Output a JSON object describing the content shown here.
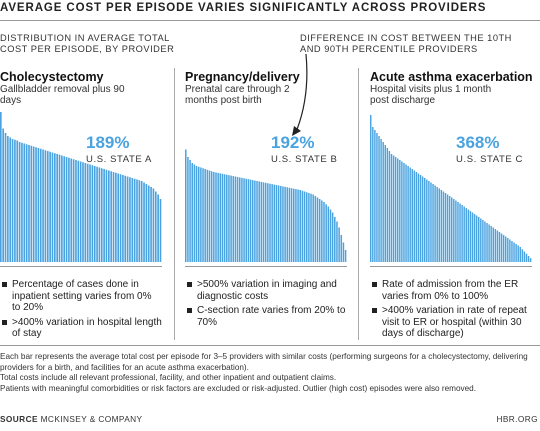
{
  "title": "AVERAGE COST PER EPISODE VARIES SIGNIFICANTLY ACROSS PROVIDERS",
  "subtitle_left": "DISTRIBUTION IN AVERAGE TOTAL COST PER EPISODE, BY PROVIDER",
  "annotation": "DIFFERENCE IN COST BETWEEN THE 10TH AND 90TH PERCENTILE PROVIDERS",
  "colors": {
    "bar": "#4aa3e0",
    "accent_text": "#4aa3e0",
    "text": "#222222"
  },
  "panels": [
    {
      "title": "Cholecystectomy",
      "subtitle": "Gallbladder removal plus 90 days",
      "difference": "189%",
      "state": "U.S. STATE A",
      "bullets": [
        "Percentage of cases done in inpatient setting varies from 0% to 20%",
        ">400% variation in hospital length of stay"
      ]
    },
    {
      "title": "Pregnancy/delivery",
      "subtitle": "Prenatal care through 2 months post birth",
      "difference": "192%",
      "state": "U.S. STATE B",
      "bullets": [
        ">500% variation in imaging and diagnostic costs",
        "C-section rate varies from 20% to 70%"
      ]
    },
    {
      "title": "Acute asthma exacerbation",
      "subtitle": "Hospital visits plus 1 month post discharge",
      "difference": "368%",
      "state": "U.S. STATE C",
      "bullets": [
        "Rate of admission from the ER varies from 0% to 100%",
        ">400% variation in rate of repeat visit to ER or hospital (within 30 days of discharge)"
      ]
    }
  ],
  "footnotes": [
    "Each bar represents the average total cost per episode for 3–5 providers with similar costs (performing surgeons for a cholecystectomy, delivering providers for a birth, and facilities for an acute asthma exacerbation).",
    "Total costs include all relevant professional, facility, and other inpatient and outpatient claims.",
    "Patients with meaningful comorbidities or risk factors are excluded or risk-adjusted. Outlier (high cost) episodes were also removed."
  ],
  "source_label": "SOURCE",
  "source_text": "MCKINSEY & COMPANY",
  "brand": "HBR.ORG",
  "chart_data": [
    {
      "type": "bar",
      "title": "Cholecystectomy",
      "sort": "descending",
      "values": [
        1.0,
        0.89,
        0.86,
        0.84,
        0.83,
        0.82,
        0.815,
        0.81,
        0.8,
        0.795,
        0.79,
        0.785,
        0.78,
        0.775,
        0.77,
        0.765,
        0.76,
        0.755,
        0.75,
        0.745,
        0.74,
        0.735,
        0.73,
        0.725,
        0.72,
        0.715,
        0.71,
        0.705,
        0.7,
        0.695,
        0.69,
        0.685,
        0.68,
        0.675,
        0.67,
        0.665,
        0.66,
        0.655,
        0.65,
        0.645,
        0.64,
        0.635,
        0.63,
        0.625,
        0.62,
        0.615,
        0.61,
        0.605,
        0.6,
        0.595,
        0.59,
        0.585,
        0.58,
        0.575,
        0.57,
        0.565,
        0.56,
        0.555,
        0.55,
        0.545,
        0.54,
        0.53,
        0.52,
        0.51,
        0.5,
        0.49,
        0.47,
        0.45,
        0.42
      ]
    },
    {
      "type": "bar",
      "title": "Pregnancy/delivery",
      "sort": "descending",
      "values": [
        0.75,
        0.7,
        0.68,
        0.66,
        0.65,
        0.64,
        0.635,
        0.63,
        0.625,
        0.62,
        0.615,
        0.61,
        0.605,
        0.6,
        0.597,
        0.594,
        0.591,
        0.588,
        0.585,
        0.582,
        0.579,
        0.576,
        0.573,
        0.57,
        0.567,
        0.564,
        0.561,
        0.558,
        0.555,
        0.552,
        0.549,
        0.546,
        0.543,
        0.54,
        0.537,
        0.534,
        0.531,
        0.528,
        0.525,
        0.522,
        0.519,
        0.516,
        0.513,
        0.51,
        0.507,
        0.504,
        0.501,
        0.498,
        0.495,
        0.492,
        0.489,
        0.486,
        0.483,
        0.48,
        0.475,
        0.47,
        0.465,
        0.46,
        0.455,
        0.45,
        0.44,
        0.43,
        0.42,
        0.41,
        0.4,
        0.385,
        0.37,
        0.35,
        0.33,
        0.3,
        0.27,
        0.23,
        0.18,
        0.13,
        0.08
      ]
    },
    {
      "type": "bar",
      "title": "Acute asthma exacerbation",
      "sort": "descending",
      "values": [
        0.98,
        0.9,
        0.88,
        0.86,
        0.84,
        0.82,
        0.8,
        0.78,
        0.76,
        0.74,
        0.72,
        0.71,
        0.7,
        0.69,
        0.68,
        0.67,
        0.66,
        0.65,
        0.64,
        0.63,
        0.62,
        0.61,
        0.6,
        0.59,
        0.58,
        0.57,
        0.56,
        0.55,
        0.54,
        0.53,
        0.52,
        0.51,
        0.5,
        0.49,
        0.48,
        0.47,
        0.46,
        0.45,
        0.44,
        0.43,
        0.42,
        0.41,
        0.4,
        0.39,
        0.38,
        0.37,
        0.36,
        0.35,
        0.34,
        0.33,
        0.32,
        0.31,
        0.3,
        0.29,
        0.28,
        0.27,
        0.26,
        0.25,
        0.24,
        0.23,
        0.22,
        0.21,
        0.2,
        0.19,
        0.18,
        0.17,
        0.16,
        0.15,
        0.14,
        0.13,
        0.12,
        0.11,
        0.1,
        0.085,
        0.07,
        0.055,
        0.04,
        0.025
      ]
    }
  ]
}
